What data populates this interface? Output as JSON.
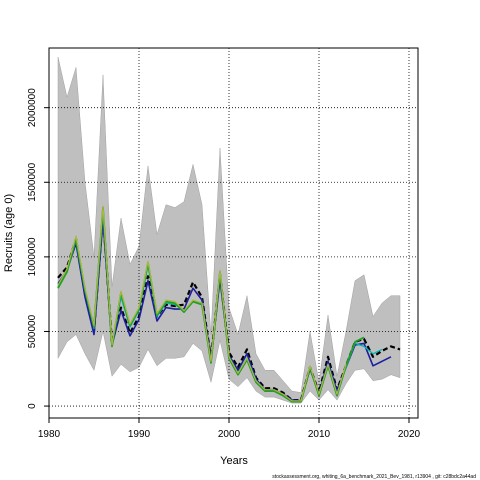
{
  "chart_data": {
    "type": "line",
    "xlabel": "Years",
    "ylabel": "Recruits (age 0)",
    "xlim": [
      1980,
      2021
    ],
    "ylim": [
      -80000,
      2400000
    ],
    "x_ticks": [
      1980,
      1990,
      2000,
      2010,
      2020
    ],
    "y_ticks": [
      0,
      500000,
      1000000,
      1500000,
      2000000
    ],
    "grid": true,
    "grid_style": "dotted",
    "footnote": "stockassessment.org, whiting_6a_benchmark_2021_Bev_1981, r13904 , git: c28bdc2a44ad",
    "confidence_band": {
      "x": [
        1981,
        1982,
        1983,
        1984,
        1985,
        1986,
        1987,
        1988,
        1989,
        1990,
        1991,
        1992,
        1993,
        1994,
        1995,
        1996,
        1997,
        1998,
        1999,
        2000,
        2001,
        2002,
        2003,
        2004,
        2005,
        2006,
        2007,
        2008,
        2009,
        2010,
        2011,
        2012,
        2013,
        2014,
        2015,
        2016,
        2017,
        2018,
        2019
      ],
      "lower": [
        320000,
        430000,
        480000,
        350000,
        240000,
        500000,
        200000,
        280000,
        230000,
        260000,
        380000,
        270000,
        320000,
        320000,
        330000,
        420000,
        370000,
        160000,
        440000,
        180000,
        130000,
        190000,
        100000,
        60000,
        60000,
        40000,
        20000,
        20000,
        100000,
        40000,
        110000,
        40000,
        150000,
        240000,
        250000,
        170000,
        180000,
        210000,
        190000
      ],
      "upper": [
        2340000,
        2070000,
        2270000,
        1500000,
        1000000,
        2220000,
        800000,
        1260000,
        950000,
        1070000,
        1610000,
        1150000,
        1350000,
        1330000,
        1370000,
        1620000,
        1350000,
        480000,
        1730000,
        660000,
        480000,
        740000,
        350000,
        240000,
        240000,
        170000,
        100000,
        90000,
        500000,
        160000,
        610000,
        200000,
        500000,
        840000,
        880000,
        600000,
        690000,
        740000,
        740000
      ]
    },
    "series": [
      {
        "color": "#000000",
        "dash": "dashed",
        "width": 2.2,
        "x": [
          1981,
          1982,
          1983,
          1984,
          1985,
          1986,
          1987,
          1988,
          1989,
          1990,
          1991,
          1992,
          1993,
          1994,
          1995,
          1996,
          1997,
          1998,
          1999,
          2000,
          2001,
          2002,
          2003,
          2004,
          2005,
          2006,
          2007,
          2008,
          2009,
          2010,
          2011,
          2012,
          2013,
          2014,
          2015,
          2016,
          2017,
          2018,
          2019
        ],
        "values": [
          860000,
          930000,
          1120000,
          750000,
          500000,
          1280000,
          420000,
          660000,
          490000,
          600000,
          870000,
          600000,
          680000,
          670000,
          680000,
          830000,
          730000,
          320000,
          880000,
          360000,
          260000,
          380000,
          190000,
          120000,
          120000,
          90000,
          40000,
          40000,
          260000,
          90000,
          330000,
          110000,
          270000,
          430000,
          450000,
          330000,
          370000,
          400000,
          380000
        ]
      },
      {
        "color": "#1e1ea0",
        "dash": "solid",
        "width": 1.6,
        "x": [
          1981,
          1982,
          1983,
          1984,
          1985,
          1986,
          1987,
          1988,
          1989,
          1990,
          1991,
          1992,
          1993,
          1994,
          1995,
          1996,
          1997,
          1998,
          1999,
          2000,
          2001,
          2002,
          2003,
          2004,
          2005,
          2006,
          2007,
          2008,
          2009,
          2010,
          2011,
          2012,
          2013,
          2014,
          2015,
          2016,
          2017,
          2018
        ],
        "values": [
          820000,
          910000,
          1090000,
          730000,
          480000,
          1250000,
          410000,
          640000,
          470000,
          580000,
          840000,
          570000,
          660000,
          650000,
          650000,
          790000,
          710000,
          310000,
          850000,
          340000,
          240000,
          350000,
          180000,
          110000,
          110000,
          80000,
          40000,
          35000,
          250000,
          80000,
          300000,
          100000,
          260000,
          410000,
          420000,
          270000,
          300000,
          330000
        ]
      },
      {
        "color": "#00b4b4",
        "dash": "solid",
        "width": 1.3,
        "x": [
          1981,
          1982,
          1983,
          1984,
          1985,
          1986,
          1987,
          1988,
          1989,
          1990,
          1991,
          1992,
          1993,
          1994,
          1995,
          1996,
          1997,
          1998,
          1999,
          2000,
          2001,
          2002,
          2003,
          2004,
          2005,
          2006,
          2007,
          2008,
          2009,
          2010,
          2011,
          2012,
          2013,
          2014,
          2015,
          2016,
          2017
        ],
        "values": [
          800000,
          910000,
          1110000,
          770000,
          520000,
          1310000,
          410000,
          730000,
          530000,
          640000,
          940000,
          600000,
          690000,
          680000,
          640000,
          700000,
          690000,
          290000,
          890000,
          330000,
          220000,
          320000,
          170000,
          100000,
          100000,
          70000,
          30000,
          30000,
          260000,
          80000,
          280000,
          80000,
          260000,
          420000,
          400000,
          350000,
          380000
        ]
      },
      {
        "color": "#22a022",
        "dash": "solid",
        "width": 1.8,
        "x": [
          1981,
          1982,
          1983,
          1984,
          1985,
          1986,
          1987,
          1988,
          1989,
          1990,
          1991,
          1992,
          1993,
          1994,
          1995,
          1996,
          1997,
          1998,
          1999,
          2000,
          2001,
          2002,
          2003,
          2004,
          2005,
          2006,
          2007,
          2008,
          2009,
          2010,
          2011,
          2012,
          2013,
          2014,
          2015
        ],
        "values": [
          790000,
          900000,
          1120000,
          780000,
          530000,
          1330000,
          400000,
          760000,
          540000,
          650000,
          960000,
          610000,
          700000,
          690000,
          630000,
          700000,
          680000,
          290000,
          900000,
          320000,
          210000,
          310000,
          160000,
          100000,
          100000,
          70000,
          30000,
          30000,
          260000,
          70000,
          270000,
          70000,
          270000,
          430000,
          460000
        ]
      },
      {
        "color": "#a8b840",
        "dash": "solid",
        "width": 1.2,
        "x": [
          1981,
          1982,
          1983,
          1984,
          1985,
          1986,
          1987,
          1988,
          1989,
          1990,
          1991,
          1992,
          1993,
          1994,
          1995,
          1996,
          1997,
          1998,
          1999,
          2000,
          2001,
          2002,
          2003,
          2004,
          2005,
          2006,
          2007,
          2008,
          2009,
          2010,
          2011,
          2012,
          2013
        ],
        "values": [
          810000,
          920000,
          1140000,
          790000,
          540000,
          1340000,
          410000,
          770000,
          550000,
          660000,
          970000,
          620000,
          710000,
          700000,
          640000,
          710000,
          690000,
          300000,
          910000,
          330000,
          220000,
          320000,
          170000,
          110000,
          110000,
          80000,
          35000,
          35000,
          270000,
          80000,
          280000,
          80000,
          280000
        ]
      }
    ]
  }
}
